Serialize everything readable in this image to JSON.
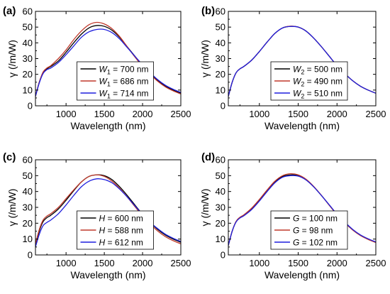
{
  "chart_data": [
    {
      "type": "line",
      "panel_label": "(a)",
      "xlabel": "Wavelength (nm)",
      "ylabel": "γ (/m/W)",
      "xlim": [
        600,
        2500
      ],
      "ylim": [
        0,
        60
      ],
      "xticks": [
        1000,
        1500,
        2000,
        2500
      ],
      "yticks": [
        0,
        10,
        20,
        30,
        40,
        50,
        60
      ],
      "legend_position": "lower-center",
      "series": [
        {
          "name": "W1 = 700 nm",
          "var": "W",
          "sub": "1",
          "value": "700 nm",
          "color": "#000000",
          "x": [
            600,
            650,
            700,
            750,
            800,
            900,
            1000,
            1100,
            1200,
            1300,
            1400,
            1500,
            1600,
            1700,
            1800,
            1900,
            2000,
            2100,
            2200,
            2300,
            2400,
            2500
          ],
          "y": [
            6,
            15,
            21,
            23.5,
            25,
            28.5,
            34,
            40,
            45.5,
            49.5,
            51,
            50.5,
            48,
            43.5,
            37.5,
            31.5,
            25.5,
            20.5,
            16,
            12.5,
            10,
            8
          ]
        },
        {
          "name": "W1 = 686 nm",
          "var": "W",
          "sub": "1",
          "value": "686 nm",
          "color": "#c0392b",
          "x": [
            600,
            650,
            700,
            750,
            800,
            900,
            1000,
            1100,
            1200,
            1300,
            1400,
            1500,
            1600,
            1700,
            1800,
            1900,
            2000,
            2100,
            2200,
            2300,
            2400,
            2500
          ],
          "y": [
            6,
            15,
            21.5,
            24,
            25.5,
            30,
            35.5,
            42,
            47.5,
            51.5,
            53,
            52,
            49,
            44,
            37.5,
            31,
            25,
            20,
            15.5,
            12,
            9.5,
            7.5
          ]
        },
        {
          "name": "W1 = 714 nm",
          "var": "W",
          "sub": "1",
          "value": "714 nm",
          "color": "#1f1fdd",
          "x": [
            600,
            650,
            700,
            750,
            800,
            900,
            1000,
            1100,
            1200,
            1300,
            1400,
            1500,
            1600,
            1700,
            1800,
            1900,
            2000,
            2100,
            2200,
            2300,
            2400,
            2500
          ],
          "y": [
            6,
            14.5,
            20.5,
            23,
            24,
            27.5,
            32.5,
            38,
            43.5,
            47,
            48.5,
            48.5,
            46.5,
            42.5,
            37,
            31.5,
            26,
            21,
            16.5,
            13,
            10.5,
            8.5
          ]
        }
      ]
    },
    {
      "type": "line",
      "panel_label": "(b)",
      "xlabel": "Wavelength (nm)",
      "ylabel": "γ (/m/W)",
      "xlim": [
        600,
        2500
      ],
      "ylim": [
        0,
        60
      ],
      "xticks": [
        1000,
        1500,
        2000,
        2500
      ],
      "yticks": [
        0,
        10,
        20,
        30,
        40,
        50,
        60
      ],
      "legend_position": "lower-center",
      "series": [
        {
          "name": "W2 = 500 nm",
          "var": "W",
          "sub": "2",
          "value": "500 nm",
          "color": "#000000",
          "x": [
            600,
            650,
            700,
            750,
            800,
            900,
            1000,
            1100,
            1200,
            1300,
            1400,
            1500,
            1600,
            1700,
            1800,
            1900,
            2000,
            2100,
            2200,
            2300,
            2400,
            2500
          ],
          "y": [
            6,
            15,
            21,
            23.5,
            25,
            29,
            34.5,
            40.5,
            46,
            49.5,
            50.5,
            50,
            47.5,
            43,
            37.5,
            31.5,
            25.5,
            20.5,
            16,
            12.5,
            10,
            8
          ]
        },
        {
          "name": "W2 = 490 nm",
          "var": "W",
          "sub": "2",
          "value": "490 nm",
          "color": "#c0392b",
          "x": [
            600,
            650,
            700,
            750,
            800,
            900,
            1000,
            1100,
            1200,
            1300,
            1400,
            1500,
            1600,
            1700,
            1800,
            1900,
            2000,
            2100,
            2200,
            2300,
            2400,
            2500
          ],
          "y": [
            6,
            15,
            21,
            23.5,
            25,
            29,
            34.5,
            40.5,
            46,
            49.5,
            50.6,
            50,
            47.5,
            43,
            37.5,
            31.5,
            25.5,
            20.5,
            16,
            12.5,
            10,
            8
          ]
        },
        {
          "name": "W2 = 510 nm",
          "var": "W",
          "sub": "2",
          "value": "510 nm",
          "color": "#1f1fdd",
          "x": [
            600,
            650,
            700,
            750,
            800,
            900,
            1000,
            1100,
            1200,
            1300,
            1400,
            1500,
            1600,
            1700,
            1800,
            1900,
            2000,
            2100,
            2200,
            2300,
            2400,
            2500
          ],
          "y": [
            6,
            15,
            21,
            23.5,
            25,
            29,
            34.5,
            40.5,
            46,
            49.5,
            50.4,
            50,
            47.5,
            43,
            37.5,
            31.5,
            25.5,
            20.5,
            16,
            12.5,
            10,
            8
          ]
        }
      ]
    },
    {
      "type": "line",
      "panel_label": "(c)",
      "xlabel": "Wavelength (nm)",
      "ylabel": "γ (/m/W)",
      "xlim": [
        600,
        2500
      ],
      "ylim": [
        0,
        60
      ],
      "xticks": [
        1000,
        1500,
        2000,
        2500
      ],
      "yticks": [
        0,
        10,
        20,
        30,
        40,
        50,
        60
      ],
      "legend_position": "lower-center",
      "series": [
        {
          "name": "H = 600 nm",
          "var": "H",
          "sub": "",
          "value": "600 nm",
          "color": "#000000",
          "x": [
            600,
            650,
            700,
            750,
            800,
            900,
            1000,
            1100,
            1200,
            1300,
            1400,
            1500,
            1600,
            1700,
            1800,
            1900,
            2000,
            2100,
            2200,
            2300,
            2400,
            2500
          ],
          "y": [
            6,
            15,
            21,
            23.5,
            25,
            29,
            34.5,
            40.5,
            46,
            49.5,
            50.5,
            50,
            47.5,
            43,
            37.5,
            31.5,
            25.5,
            20.5,
            16,
            12.5,
            10,
            8
          ]
        },
        {
          "name": "H = 588 nm",
          "var": "H",
          "sub": "",
          "value": "588 nm",
          "color": "#c0392b",
          "x": [
            600,
            650,
            700,
            750,
            800,
            900,
            1000,
            1100,
            1200,
            1300,
            1400,
            1500,
            1600,
            1700,
            1800,
            1900,
            2000,
            2100,
            2200,
            2300,
            2400,
            2500
          ],
          "y": [
            7,
            16,
            22,
            24.5,
            26,
            30,
            35.5,
            41,
            46,
            49.5,
            50.5,
            49.5,
            46.5,
            42,
            36.5,
            30.5,
            24.5,
            19.5,
            15,
            11.5,
            9,
            7
          ]
        },
        {
          "name": "H = 612 nm",
          "var": "H",
          "sub": "",
          "value": "612 nm",
          "color": "#1f1fdd",
          "x": [
            600,
            650,
            700,
            750,
            800,
            900,
            1000,
            1100,
            1200,
            1300,
            1400,
            1500,
            1600,
            1700,
            1800,
            1900,
            2000,
            2100,
            2200,
            2300,
            2400,
            2500
          ],
          "y": [
            5,
            13,
            18.5,
            20.5,
            22,
            26,
            31.5,
            37.5,
            43,
            46.5,
            48,
            47.5,
            45.5,
            41.5,
            36.5,
            31,
            25.5,
            20.5,
            16.5,
            13,
            10.5,
            8.5
          ]
        }
      ]
    },
    {
      "type": "line",
      "panel_label": "(d)",
      "xlabel": "Wavelength (nm)",
      "ylabel": "γ (/m/W)",
      "xlim": [
        600,
        2500
      ],
      "ylim": [
        0,
        60
      ],
      "xticks": [
        1000,
        1500,
        2000,
        2500
      ],
      "yticks": [
        0,
        10,
        20,
        30,
        40,
        50,
        60
      ],
      "legend_position": "lower-center",
      "series": [
        {
          "name": "G = 100 nm",
          "var": "G",
          "sub": "",
          "value": "100 nm",
          "color": "#000000",
          "x": [
            600,
            650,
            700,
            750,
            800,
            900,
            1000,
            1100,
            1200,
            1300,
            1400,
            1500,
            1600,
            1700,
            1800,
            1900,
            2000,
            2100,
            2200,
            2300,
            2400,
            2500
          ],
          "y": [
            6,
            15,
            21,
            23.5,
            25,
            29,
            34.5,
            40.5,
            46,
            49.5,
            50.5,
            50,
            47.5,
            43,
            37.5,
            31.5,
            25.5,
            20.5,
            16,
            12.5,
            10,
            8
          ]
        },
        {
          "name": "G = 98 nm",
          "var": "G",
          "sub": "",
          "value": "98 nm",
          "color": "#c0392b",
          "x": [
            600,
            650,
            700,
            750,
            800,
            900,
            1000,
            1100,
            1200,
            1300,
            1400,
            1500,
            1600,
            1700,
            1800,
            1900,
            2000,
            2100,
            2200,
            2300,
            2400,
            2500
          ],
          "y": [
            6,
            15,
            21.2,
            23.8,
            25.3,
            29.5,
            35,
            41,
            46.5,
            50,
            51.2,
            50.5,
            47.8,
            43.2,
            37.5,
            31.3,
            25.3,
            20.3,
            15.8,
            12.3,
            9.8,
            7.8
          ]
        },
        {
          "name": "G = 102 nm",
          "var": "G",
          "sub": "",
          "value": "102 nm",
          "color": "#1f1fdd",
          "x": [
            600,
            650,
            700,
            750,
            800,
            900,
            1000,
            1100,
            1200,
            1300,
            1400,
            1500,
            1600,
            1700,
            1800,
            1900,
            2000,
            2100,
            2200,
            2300,
            2400,
            2500
          ],
          "y": [
            6,
            15,
            20.8,
            23.3,
            24.7,
            28.6,
            34,
            40,
            45.5,
            49,
            50,
            49.7,
            47.3,
            42.9,
            37.4,
            31.6,
            25.7,
            20.7,
            16.2,
            12.7,
            10.2,
            8.2
          ]
        }
      ]
    }
  ]
}
